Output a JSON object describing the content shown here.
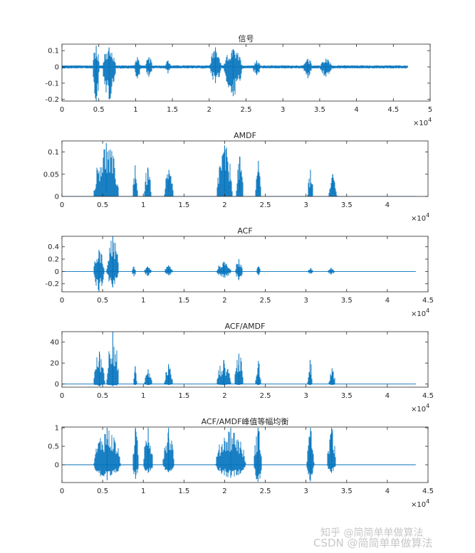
{
  "chart_data": [
    {
      "type": "line",
      "title": "信号",
      "xlim": [
        0,
        50000
      ],
      "ylim": [
        -0.21,
        0.14
      ],
      "xticks": [
        0,
        5000,
        10000,
        15000,
        20000,
        25000,
        30000,
        35000,
        40000,
        45000,
        50000
      ],
      "xtick_labels": [
        "0",
        "0.5",
        "1",
        "1.5",
        "2",
        "2.5",
        "3",
        "3.5",
        "4",
        "4.5",
        "5"
      ],
      "yticks": [
        -0.2,
        -0.1,
        0,
        0.1
      ],
      "ytick_labels": [
        "-0.2",
        "-0.1",
        "0",
        "0.1"
      ],
      "exponent_label": "×10",
      "exponent_power": "4",
      "color": "#0072BD",
      "segments": [
        {
          "start": 4200,
          "end": 5100,
          "upper": 0.13,
          "lower": -0.21
        },
        {
          "start": 5500,
          "end": 7300,
          "upper": 0.12,
          "lower": -0.2
        },
        {
          "start": 9800,
          "end": 10700,
          "upper": 0.06,
          "lower": -0.07
        },
        {
          "start": 11300,
          "end": 12300,
          "upper": 0.06,
          "lower": -0.06
        },
        {
          "start": 14000,
          "end": 14800,
          "upper": 0.04,
          "lower": -0.04
        },
        {
          "start": 20100,
          "end": 21600,
          "upper": 0.12,
          "lower": -0.1
        },
        {
          "start": 22000,
          "end": 24500,
          "upper": 0.11,
          "lower": -0.18
        },
        {
          "start": 25900,
          "end": 27000,
          "upper": 0.04,
          "lower": -0.05
        },
        {
          "start": 32800,
          "end": 34000,
          "upper": 0.05,
          "lower": -0.07
        },
        {
          "start": 35000,
          "end": 36700,
          "upper": 0.05,
          "lower": -0.06
        }
      ],
      "noise": 0.01,
      "signal_end": 47000
    },
    {
      "type": "line",
      "title": "AMDF",
      "xlim": [
        0,
        45000
      ],
      "ylim": [
        0,
        0.125
      ],
      "xticks": [
        0,
        5000,
        10000,
        15000,
        20000,
        25000,
        30000,
        35000,
        40000
      ],
      "xtick_labels": [
        "0",
        "0.5",
        "1",
        "1.5",
        "2",
        "2.5",
        "3",
        "3.5",
        "4"
      ],
      "yticks": [
        0,
        0.05,
        0.1
      ],
      "ytick_labels": [
        "0",
        "0.05",
        "0.1"
      ],
      "exponent_label": "×10",
      "exponent_power": "4",
      "color": "#0072BD",
      "segments": [
        {
          "start": 3900,
          "end": 7000,
          "upper": 0.12,
          "lower": 0.01
        },
        {
          "start": 8700,
          "end": 9300,
          "upper": 0.07,
          "lower": 0.01
        },
        {
          "start": 10100,
          "end": 11000,
          "upper": 0.065,
          "lower": 0.01
        },
        {
          "start": 12600,
          "end": 13700,
          "upper": 0.06,
          "lower": 0.01
        },
        {
          "start": 19000,
          "end": 21000,
          "upper": 0.115,
          "lower": 0.01
        },
        {
          "start": 21400,
          "end": 22300,
          "upper": 0.09,
          "lower": 0.01
        },
        {
          "start": 23800,
          "end": 24500,
          "upper": 0.08,
          "lower": 0.01
        },
        {
          "start": 30200,
          "end": 30900,
          "upper": 0.06,
          "lower": 0.005
        },
        {
          "start": 32800,
          "end": 33800,
          "upper": 0.05,
          "lower": 0.005
        }
      ],
      "baseline": 0,
      "signal_end": 43500
    },
    {
      "type": "line",
      "title": "ACF",
      "xlim": [
        0,
        45000
      ],
      "ylim": [
        -0.33,
        0.57
      ],
      "xticks": [
        0,
        5000,
        10000,
        15000,
        20000,
        25000,
        30000,
        35000,
        40000,
        45000
      ],
      "xtick_labels": [
        "0",
        "0.5",
        "1",
        "1.5",
        "2",
        "2.5",
        "3",
        "3.5",
        "4",
        "4.5"
      ],
      "yticks": [
        -0.2,
        0,
        0.2,
        0.4
      ],
      "ytick_labels": [
        "-0.2",
        "0",
        "0.2",
        "0.4"
      ],
      "exponent_label": "×10",
      "exponent_power": "4",
      "color": "#0072BD",
      "segments": [
        {
          "start": 3900,
          "end": 5200,
          "upper": 0.35,
          "lower": -0.33
        },
        {
          "start": 5500,
          "end": 7000,
          "upper": 0.57,
          "lower": -0.26
        },
        {
          "start": 8600,
          "end": 9100,
          "upper": 0.08,
          "lower": -0.08
        },
        {
          "start": 10100,
          "end": 11000,
          "upper": 0.08,
          "lower": -0.07
        },
        {
          "start": 12600,
          "end": 13600,
          "upper": 0.1,
          "lower": -0.06
        },
        {
          "start": 19000,
          "end": 20800,
          "upper": 0.16,
          "lower": -0.1
        },
        {
          "start": 21300,
          "end": 22200,
          "upper": 0.2,
          "lower": -0.14
        },
        {
          "start": 23900,
          "end": 24400,
          "upper": 0.08,
          "lower": -0.06
        },
        {
          "start": 30200,
          "end": 30900,
          "upper": 0.05,
          "lower": -0.04
        },
        {
          "start": 32700,
          "end": 33500,
          "upper": 0.06,
          "lower": -0.05
        }
      ],
      "baseline": 0,
      "signal_end": 43500
    },
    {
      "type": "line",
      "title": "ACF/AMDF",
      "xlim": [
        0,
        45000
      ],
      "ylim": [
        -3,
        50
      ],
      "xticks": [
        0,
        5000,
        10000,
        15000,
        20000,
        25000,
        30000,
        35000,
        40000,
        45000
      ],
      "xtick_labels": [
        "0",
        "0.5",
        "1",
        "1.5",
        "2",
        "2.5",
        "3",
        "3.5",
        "4",
        "4.5"
      ],
      "yticks": [
        0,
        20,
        40
      ],
      "ytick_labels": [
        "0",
        "20",
        "40"
      ],
      "exponent_label": "×10",
      "exponent_power": "4",
      "color": "#0072BD",
      "segments": [
        {
          "start": 3900,
          "end": 5300,
          "upper": 31,
          "lower": -2
        },
        {
          "start": 5500,
          "end": 7000,
          "upper": 50,
          "lower": -2
        },
        {
          "start": 8800,
          "end": 9200,
          "upper": 17,
          "lower": -1
        },
        {
          "start": 10100,
          "end": 11100,
          "upper": 14,
          "lower": -1
        },
        {
          "start": 12600,
          "end": 13600,
          "upper": 19,
          "lower": -1
        },
        {
          "start": 19000,
          "end": 20800,
          "upper": 23,
          "lower": -1
        },
        {
          "start": 21200,
          "end": 22300,
          "upper": 29,
          "lower": -1
        },
        {
          "start": 23800,
          "end": 24500,
          "upper": 22,
          "lower": -1
        },
        {
          "start": 30200,
          "end": 30800,
          "upper": 23,
          "lower": -1
        },
        {
          "start": 32800,
          "end": 33600,
          "upper": 15,
          "lower": -1
        }
      ],
      "baseline": 0,
      "signal_end": 43500
    },
    {
      "type": "line",
      "title": "ACF/AMDF峰值等幅均衡",
      "xlim": [
        0,
        45000
      ],
      "ylim": [
        -0.48,
        1.02
      ],
      "xticks": [
        0,
        5000,
        10000,
        15000,
        20000,
        25000,
        30000,
        35000,
        40000,
        45000
      ],
      "xtick_labels": [
        "0",
        "0.5",
        "1",
        "1.5",
        "2",
        "2.5",
        "3",
        "3.5",
        "4",
        "4.5"
      ],
      "yticks": [
        0,
        0.5,
        1
      ],
      "ytick_labels": [
        "0",
        "0.5",
        "1"
      ],
      "exponent_label": "×10",
      "exponent_power": "4",
      "color": "#0072BD",
      "segments": [
        {
          "start": 3900,
          "end": 7200,
          "upper": 1,
          "lower": -0.42
        },
        {
          "start": 8700,
          "end": 9400,
          "upper": 1,
          "lower": -0.38
        },
        {
          "start": 10000,
          "end": 11200,
          "upper": 1,
          "lower": -0.22
        },
        {
          "start": 12400,
          "end": 13800,
          "upper": 1,
          "lower": -0.2
        },
        {
          "start": 18900,
          "end": 22600,
          "upper": 1,
          "lower": -0.35
        },
        {
          "start": 23600,
          "end": 24600,
          "upper": 1,
          "lower": -0.46
        },
        {
          "start": 30100,
          "end": 31000,
          "upper": 1,
          "lower": -0.45
        },
        {
          "start": 32600,
          "end": 33700,
          "upper": 1,
          "lower": -0.22
        }
      ],
      "baseline": 0,
      "signal_end": 43500
    }
  ],
  "watermark": {
    "line1": "知乎 @简简单单做算法",
    "line2": "CSDN @简简单单做算法"
  }
}
